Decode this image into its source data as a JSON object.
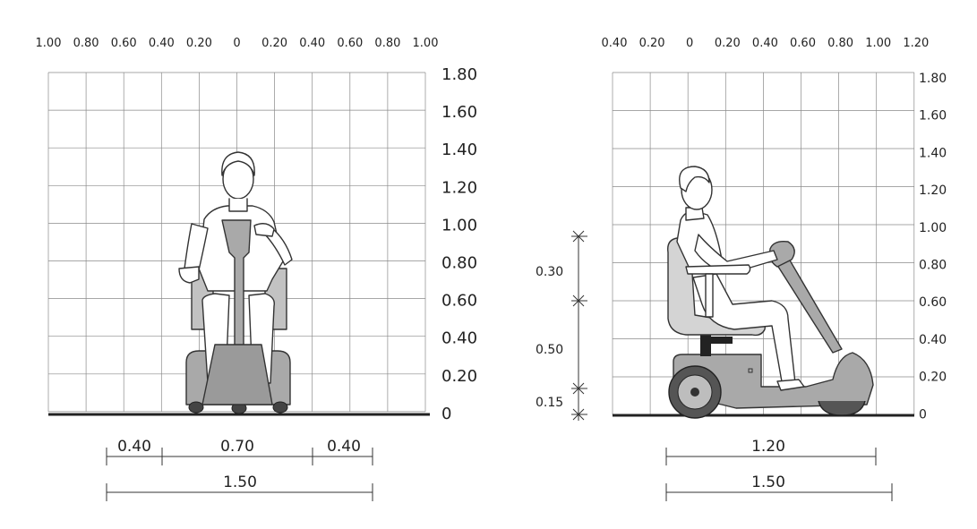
{
  "front_view": {
    "top_ticks": [
      "1.00",
      "0.80",
      "0.60",
      "0.40",
      "0.20",
      "0",
      "0.20",
      "0.40",
      "0.60",
      "0.80",
      "1.00"
    ],
    "right_ticks": [
      "1.80",
      "1.60",
      "1.40",
      "1.20",
      "1.00",
      "0.80",
      "0.60",
      "0.40",
      "0.20",
      "0"
    ],
    "dimensions": {
      "left_side": "0.40",
      "center": "0.70",
      "right_side": "0.40",
      "overall": "1.50"
    }
  },
  "side_view": {
    "top_ticks": [
      "0.40",
      "0.20",
      "0",
      "0.20",
      "0.40",
      "0.60",
      "0.80",
      "1.00",
      "1.20"
    ],
    "right_ticks": [
      "1.80",
      "1.60",
      "1.40",
      "1.20",
      "1.00",
      "0.80",
      "0.60",
      "0.40",
      "0.20",
      "0"
    ],
    "dimensions": {
      "length_inner": "1.20",
      "length_overall": "1.50"
    },
    "vertical_dimensions": [
      "0.30",
      "0.50",
      "0.15"
    ]
  },
  "colors": {
    "grid": "#8a8a8a",
    "ground": "#222222",
    "scooter_body": "#a9a9a9",
    "scooter_dark": "#555555",
    "seat": "#d4d4d4",
    "person_fill": "#ffffff"
  }
}
